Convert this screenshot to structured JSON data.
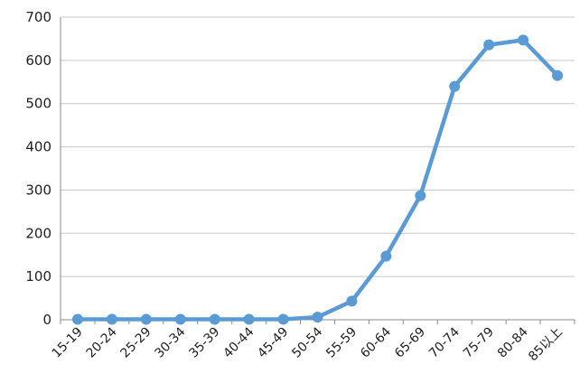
{
  "chart_data": {
    "type": "line",
    "categories": [
      "15-19",
      "20-24",
      "25-29",
      "30-34",
      "35-39",
      "40-44",
      "45-49",
      "50-54",
      "55-59",
      "60-64",
      "65-69",
      "70-74",
      "75-79",
      "80-84",
      "85以上"
    ],
    "series": [
      {
        "values": [
          1,
          1,
          1,
          1,
          1,
          1,
          1,
          6,
          43,
          147,
          287,
          540,
          636,
          647,
          565
        ],
        "color": "#5b9bd5"
      }
    ],
    "yticks": [
      0,
      100,
      200,
      300,
      400,
      500,
      600,
      700
    ],
    "ylim": [
      0,
      700
    ],
    "grid": true,
    "title": "",
    "xlabel": "",
    "ylabel": "",
    "axis_color": "#8c8c8c",
    "grid_color": "#c8c8c8"
  }
}
